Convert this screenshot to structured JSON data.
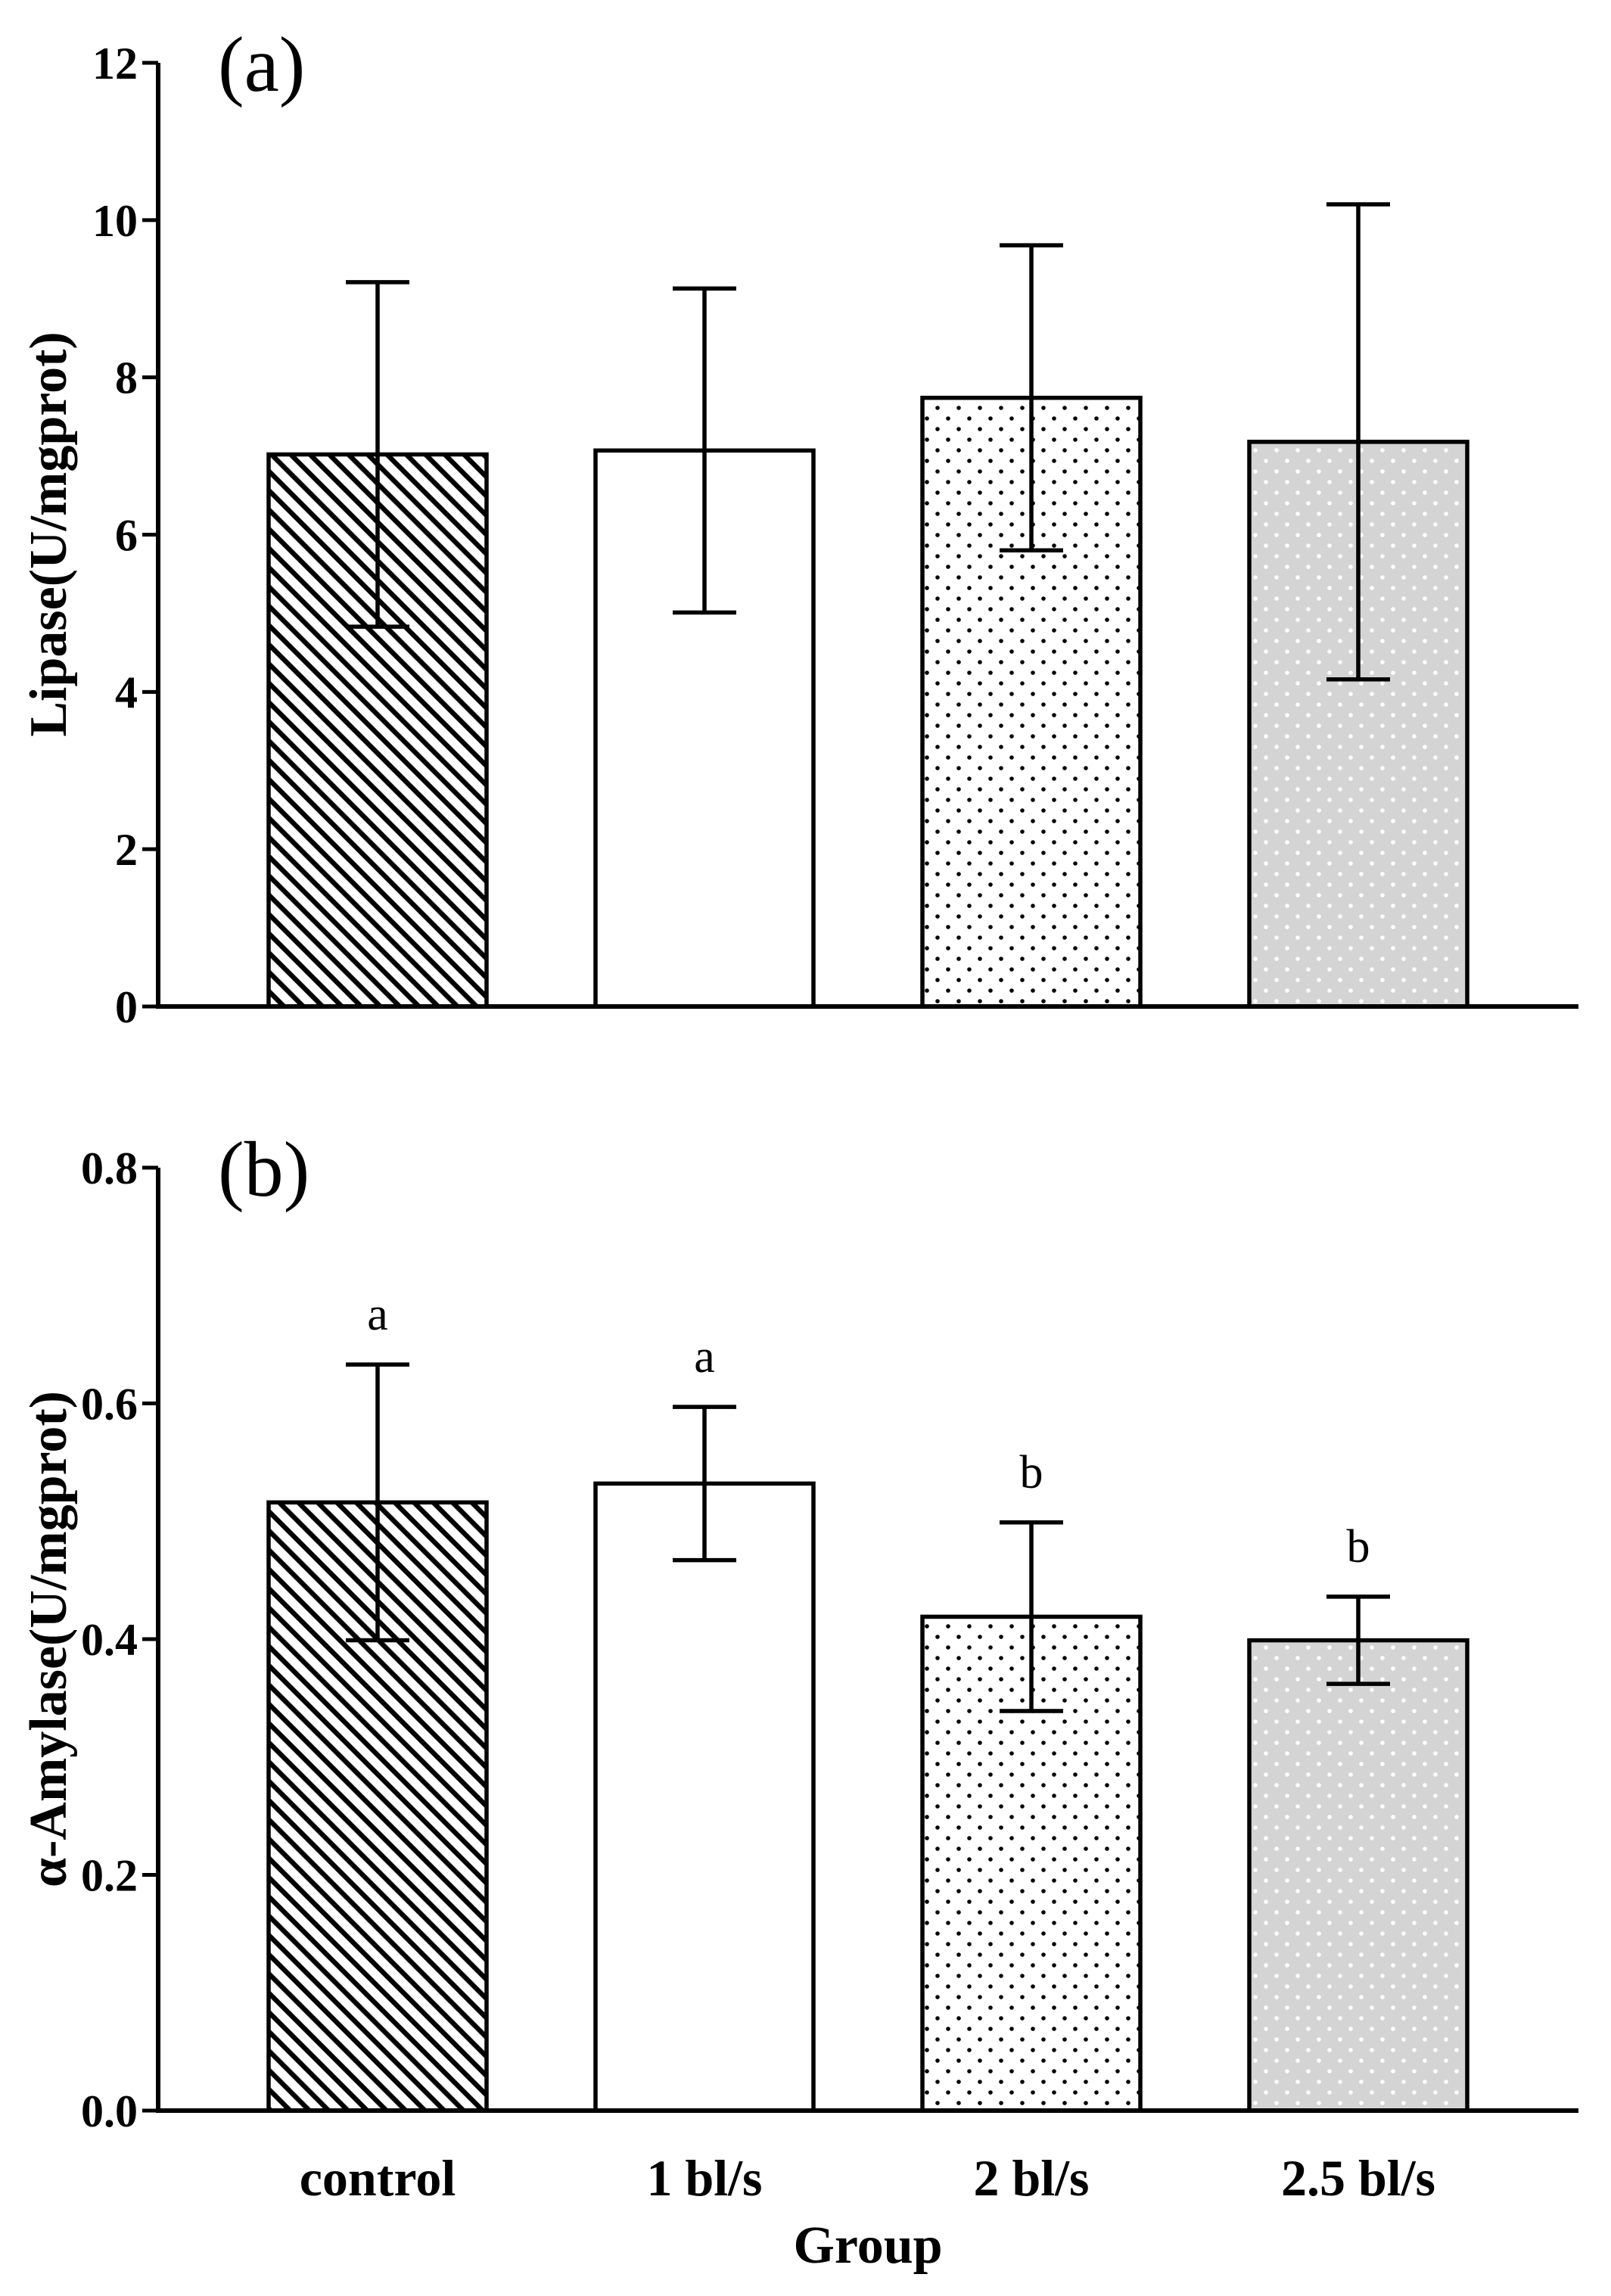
{
  "colors": {
    "ink": "#000000",
    "bar_gray": "#d4d4d4",
    "background": "#ffffff"
  },
  "chart_data": [
    {
      "type": "bar",
      "panel_label": "(a)",
      "categories": [
        "control",
        "1 bl/s",
        "2 bl/s",
        "2.5 bl/s"
      ],
      "values": [
        7.02,
        7.07,
        7.74,
        7.18
      ],
      "error": [
        2.19,
        2.06,
        1.94,
        3.02
      ],
      "xlabel": "",
      "ylabel": "Lipase(U/mgprot)",
      "ylim": [
        0,
        12
      ],
      "yticks": [
        "0",
        "2",
        "4",
        "6",
        "8",
        "10",
        "12"
      ],
      "significance": []
    },
    {
      "type": "bar",
      "panel_label": "(b)",
      "categories": [
        "control",
        "1 bl/s",
        "2 bl/s",
        "2.5 bl/s"
      ],
      "values": [
        0.516,
        0.532,
        0.419,
        0.399
      ],
      "error": [
        0.117,
        0.065,
        0.08,
        0.037
      ],
      "xlabel": "Group",
      "ylabel": "α-Amylase(U/mgprot)",
      "ylim": [
        0,
        0.8
      ],
      "yticks": [
        "0.0",
        "0.2",
        "0.4",
        "0.6",
        "0.8"
      ],
      "significance": [
        "a",
        "a",
        "b",
        "b"
      ]
    }
  ]
}
